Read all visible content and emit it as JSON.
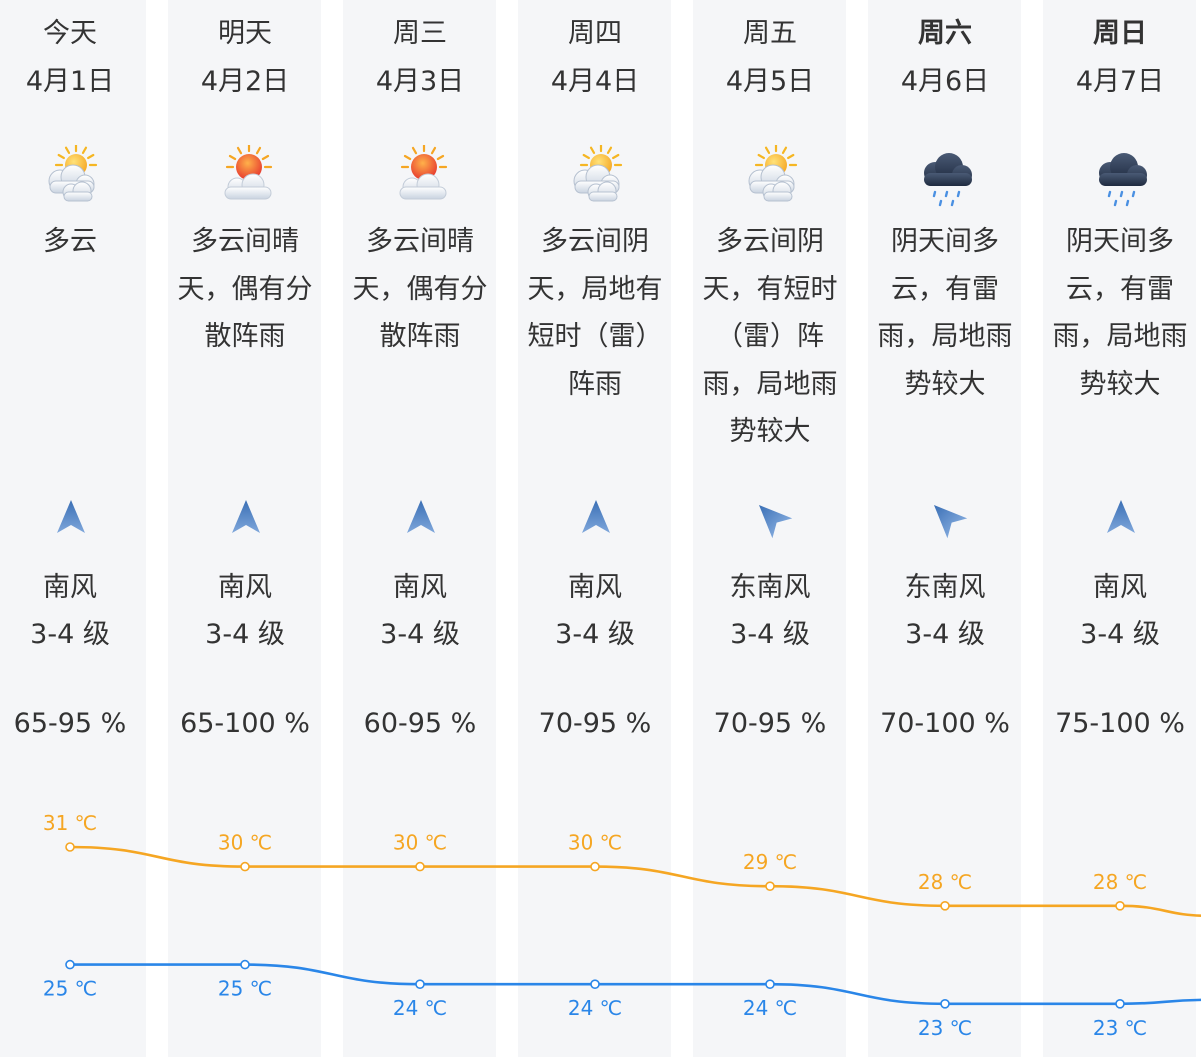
{
  "colors": {
    "high": "#f5a623",
    "low": "#2a86e8",
    "column_bg": "#f5f6f8",
    "text": "#333333",
    "arrow": "#4a7fc4"
  },
  "days": [
    {
      "day": "今天",
      "date": "4月1日",
      "weekend": false,
      "icon": "partly-cloudy-sun-icon",
      "desc": [
        "多云"
      ],
      "wind_arrow": "north-arrow-icon",
      "wind_rotation_deg": 0,
      "wind_dir": "南风",
      "wind_level": "3-4 级",
      "humidity": "65-95 %",
      "high": 31,
      "high_label": "31 ℃",
      "low": 25,
      "low_label": "25 ℃"
    },
    {
      "day": "明天",
      "date": "4月2日",
      "weekend": false,
      "icon": "sun-behind-cloud-icon",
      "desc": [
        "多云间晴",
        "天，偶有分",
        "散阵雨"
      ],
      "wind_arrow": "north-arrow-icon",
      "wind_rotation_deg": 0,
      "wind_dir": "南风",
      "wind_level": "3-4 级",
      "humidity": "65-100 %",
      "high": 30,
      "high_label": "30 ℃",
      "low": 25,
      "low_label": "25 ℃"
    },
    {
      "day": "周三",
      "date": "4月3日",
      "weekend": false,
      "icon": "sun-behind-cloud-icon",
      "desc": [
        "多云间晴",
        "天，偶有分",
        "散阵雨"
      ],
      "wind_arrow": "north-arrow-icon",
      "wind_rotation_deg": 0,
      "wind_dir": "南风",
      "wind_level": "3-4 级",
      "humidity": "60-95 %",
      "high": 30,
      "high_label": "30 ℃",
      "low": 24,
      "low_label": "24 ℃"
    },
    {
      "day": "周四",
      "date": "4月4日",
      "weekend": false,
      "icon": "partly-cloudy-sun-icon",
      "desc": [
        "多云间阴",
        "天，局地有",
        "短时（雷）",
        "阵雨"
      ],
      "wind_arrow": "north-arrow-icon",
      "wind_rotation_deg": 0,
      "wind_dir": "南风",
      "wind_level": "3-4 级",
      "humidity": "70-95 %",
      "high": 30,
      "high_label": "30 ℃",
      "low": 24,
      "low_label": "24 ℃"
    },
    {
      "day": "周五",
      "date": "4月5日",
      "weekend": false,
      "icon": "partly-cloudy-sun-icon",
      "desc": [
        "多云间阴",
        "天，有短时",
        "（雷）阵",
        "雨，局地雨",
        "势较大"
      ],
      "wind_arrow": "northwest-arrow-icon",
      "wind_rotation_deg": -45,
      "wind_dir": "东南风",
      "wind_level": "3-4 级",
      "humidity": "70-95 %",
      "high": 29,
      "high_label": "29 ℃",
      "low": 24,
      "low_label": "24 ℃"
    },
    {
      "day": "周六",
      "date": "4月6日",
      "weekend": true,
      "icon": "rain-cloud-icon",
      "desc": [
        "阴天间多",
        "云，有雷",
        "雨，局地雨",
        "势较大"
      ],
      "wind_arrow": "northwest-arrow-icon",
      "wind_rotation_deg": -45,
      "wind_dir": "东南风",
      "wind_level": "3-4 级",
      "humidity": "70-100 %",
      "high": 28,
      "high_label": "28 ℃",
      "low": 23,
      "low_label": "23 ℃"
    },
    {
      "day": "周日",
      "date": "4月7日",
      "weekend": true,
      "icon": "rain-cloud-icon",
      "desc": [
        "阴天间多",
        "云，有雷",
        "雨，局地雨",
        "势较大"
      ],
      "wind_arrow": "north-arrow-icon",
      "wind_rotation_deg": 0,
      "wind_dir": "南风",
      "wind_level": "3-4 级",
      "humidity": "75-100 %",
      "high": 28,
      "high_label": "28 ℃",
      "low": 23,
      "low_label": "23 ℃"
    }
  ],
  "chart_data": {
    "type": "line",
    "categories": [
      "4月1日",
      "4月2日",
      "4月3日",
      "4月4日",
      "4月5日",
      "4月6日",
      "4月7日"
    ],
    "series": [
      {
        "values": [
          31,
          30,
          30,
          30,
          29,
          28,
          28
        ],
        "labels": [
          "31 ℃",
          "30 ℃",
          "30 ℃",
          "30 ℃",
          "29 ℃",
          "28 ℃",
          "28 ℃"
        ],
        "color": "#f5a623"
      },
      {
        "values": [
          25,
          25,
          24,
          24,
          24,
          23,
          23
        ],
        "labels": [
          "25 ℃",
          "25 ℃",
          "24 ℃",
          "24 ℃",
          "24 ℃",
          "23 ℃",
          "23 ℃"
        ],
        "color": "#2a86e8"
      }
    ],
    "grid": false,
    "legend": "none"
  }
}
